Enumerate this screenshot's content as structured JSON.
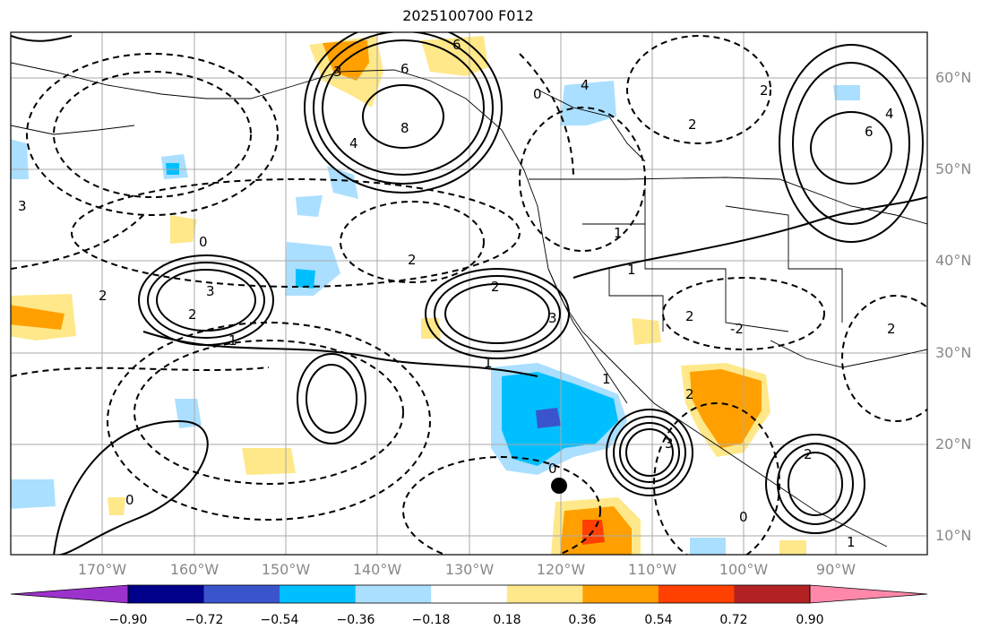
{
  "title": "2025100700 F012",
  "lat_labels": [
    "60°N",
    "50°N",
    "40°N",
    "30°N",
    "20°N",
    "10°N"
  ],
  "lon_labels": [
    "170°W",
    "160°W",
    "150°W",
    "140°W",
    "130°W",
    "120°W",
    "110°W",
    "100°W",
    "90°W"
  ],
  "colorbar": {
    "colors": [
      "#9c32cc",
      "#00008b",
      "#3a55cc",
      "#00bfff",
      "#aadfff",
      "#ffffff",
      "#ffe88a",
      "#ffa000",
      "#ff4000",
      "#b22222",
      "#ff88aa"
    ],
    "labels": [
      "−0.90",
      "−0.72",
      "−0.54",
      "−0.36",
      "−0.18",
      "0.18",
      "0.36",
      "0.54",
      "0.72",
      "0.90"
    ]
  },
  "contour_labels": {
    "solid": [
      "6",
      "3",
      "6",
      "8",
      "4",
      "6",
      "4",
      "3",
      "2",
      "3",
      "2",
      "1",
      "1",
      "2",
      "1",
      "3",
      "2"
    ],
    "dashed": [
      "4",
      "3",
      "2",
      "0",
      "2",
      "2",
      "0",
      "1",
      "2",
      "-2",
      "2",
      "0",
      "1",
      "0",
      "1",
      "2",
      "0"
    ]
  },
  "colors": {
    "blue_fill": "#00bfff",
    "light_blue_fill": "#aadfff",
    "dark_blue_fill": "#3a55cc",
    "yellow_fill": "#ffe88a",
    "orange_fill": "#ffa000",
    "red_fill": "#ff4000"
  }
}
